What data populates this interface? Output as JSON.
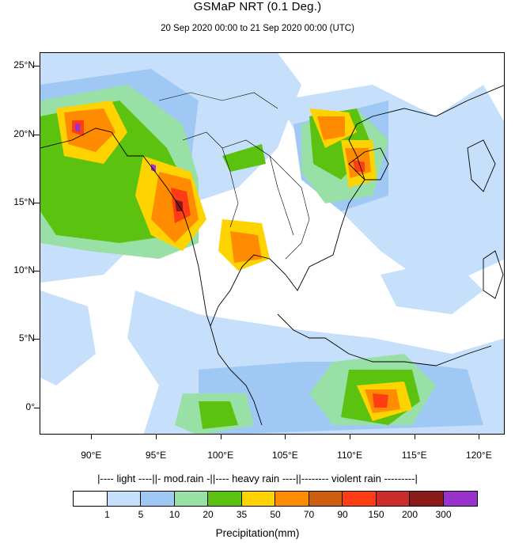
{
  "header": {
    "title": "GSMaP NRT (0.1 Deg.)",
    "subtitle": "20 Sep 2020 00:00 to 21 Sep 2020 00:00 (UTC)"
  },
  "map": {
    "lon_range": [
      86,
      122
    ],
    "lat_range": [
      -2,
      26
    ],
    "lat_labels": [
      "25°N",
      "20°N",
      "15°N",
      "10°N",
      "5°N",
      "0°"
    ],
    "lat_values": [
      25,
      20,
      15,
      10,
      5,
      0
    ],
    "lon_labels": [
      "90°E",
      "95°E",
      "100°E",
      "105°E",
      "110°E",
      "115°E",
      "120°E"
    ],
    "lon_values": [
      90,
      95,
      100,
      105,
      110,
      115,
      120
    ]
  },
  "legend": {
    "categories_text": "|---- light ----||- mod.rain -||---- heavy rain ----||-------- violent rain ---------|",
    "colors": [
      "#ffffff",
      "#c6dffb",
      "#a0c8f4",
      "#98e0a6",
      "#5bc20f",
      "#ffd300",
      "#ff8c00",
      "#cc5e10",
      "#ff3c14",
      "#cd2c2c",
      "#8b1a1a",
      "#9a32cd"
    ],
    "tick_labels": [
      "1",
      "5",
      "10",
      "20",
      "35",
      "50",
      "70",
      "90",
      "150",
      "200",
      "300"
    ],
    "xlabel": "Precipitation(mm)"
  }
}
